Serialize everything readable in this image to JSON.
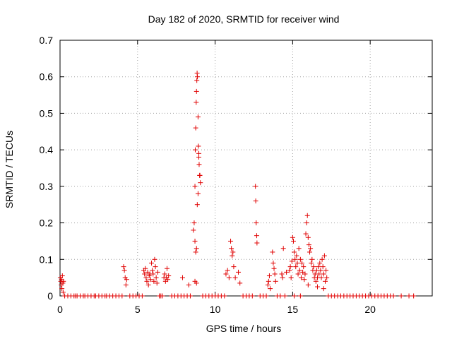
{
  "chart_data": {
    "type": "scatter",
    "title": "Day 182 of 2020, SRMTID for receiver wind",
    "xlabel": "GPS time / hours",
    "ylabel": "SRMTID / TECUs",
    "xlim": [
      0,
      24
    ],
    "ylim": [
      0,
      0.7
    ],
    "xticks": [
      0,
      5,
      10,
      15,
      20
    ],
    "xtick_labels": [
      "0",
      "5",
      "10",
      "15",
      "20"
    ],
    "yticks": [
      0,
      0.1,
      0.2,
      0.3,
      0.4,
      0.5,
      0.6,
      0.7
    ],
    "ytick_labels": [
      "0",
      "0.1",
      "0.2",
      "0.3",
      "0.4",
      "0.5",
      "0.6",
      "0.7"
    ],
    "grid": true,
    "marker": "plus",
    "color": "#e00000",
    "series": [
      {
        "name": "SRMTID",
        "points": [
          [
            0.02,
            0.05
          ],
          [
            0.05,
            0.04
          ],
          [
            0.08,
            0.03
          ],
          [
            0.1,
            0.045
          ],
          [
            0.12,
            0.02
          ],
          [
            0.15,
            0.055
          ],
          [
            0.18,
            0.035
          ],
          [
            0.2,
            0.01
          ],
          [
            0.22,
            0.04
          ],
          [
            0.3,
            0
          ],
          [
            0.5,
            0
          ],
          [
            0.7,
            0
          ],
          [
            0.9,
            0
          ],
          [
            1.0,
            0
          ],
          [
            1.1,
            0
          ],
          [
            1.3,
            0
          ],
          [
            1.5,
            0
          ],
          [
            1.6,
            0
          ],
          [
            1.8,
            0
          ],
          [
            2.0,
            0
          ],
          [
            2.2,
            0
          ],
          [
            2.3,
            0
          ],
          [
            2.5,
            0
          ],
          [
            2.7,
            0
          ],
          [
            2.9,
            0
          ],
          [
            3.0,
            0
          ],
          [
            3.2,
            0
          ],
          [
            3.4,
            0
          ],
          [
            3.6,
            0
          ],
          [
            3.8,
            0
          ],
          [
            4.0,
            0
          ],
          [
            4.1,
            0.08
          ],
          [
            4.15,
            0.07
          ],
          [
            4.2,
            0.05
          ],
          [
            4.25,
            0.03
          ],
          [
            4.3,
            0.045
          ],
          [
            4.5,
            0
          ],
          [
            4.7,
            0
          ],
          [
            4.9,
            0
          ],
          [
            5.1,
            0
          ],
          [
            5.3,
            0
          ],
          [
            5.4,
            0.07
          ],
          [
            5.45,
            0.06
          ],
          [
            5.5,
            0.075
          ],
          [
            5.55,
            0.05
          ],
          [
            5.6,
            0.04
          ],
          [
            5.65,
            0.065
          ],
          [
            5.7,
            0.03
          ],
          [
            5.75,
            0.055
          ],
          [
            5.8,
            0.06
          ],
          [
            5.85,
            0.045
          ],
          [
            5.9,
            0.09
          ],
          [
            5.95,
            0.07
          ],
          [
            6.0,
            0.06
          ],
          [
            6.05,
            0.04
          ],
          [
            6.1,
            0.1
          ],
          [
            6.15,
            0.08
          ],
          [
            6.2,
            0.05
          ],
          [
            6.25,
            0.035
          ],
          [
            6.3,
            0.065
          ],
          [
            6.4,
            0
          ],
          [
            6.5,
            0
          ],
          [
            6.6,
            0
          ],
          [
            6.7,
            0.05
          ],
          [
            6.75,
            0.06
          ],
          [
            6.8,
            0.04
          ],
          [
            6.85,
            0.05
          ],
          [
            6.9,
            0.075
          ],
          [
            6.95,
            0.045
          ],
          [
            7.0,
            0.055
          ],
          [
            7.2,
            0
          ],
          [
            7.4,
            0
          ],
          [
            7.6,
            0
          ],
          [
            7.8,
            0
          ],
          [
            7.9,
            0.05
          ],
          [
            8.0,
            0
          ],
          [
            8.2,
            0
          ],
          [
            8.3,
            0.03
          ],
          [
            8.4,
            0
          ],
          [
            8.6,
            0.18
          ],
          [
            8.65,
            0.2
          ],
          [
            8.7,
            0.3
          ],
          [
            8.72,
            0.4
          ],
          [
            8.75,
            0.46
          ],
          [
            8.78,
            0.53
          ],
          [
            8.8,
            0.56
          ],
          [
            8.82,
            0.59
          ],
          [
            8.84,
            0.61
          ],
          [
            8.86,
            0.6
          ],
          [
            8.9,
            0.49
          ],
          [
            8.92,
            0.41
          ],
          [
            8.95,
            0.38
          ],
          [
            8.97,
            0.36
          ],
          [
            9.0,
            0.33
          ],
          [
            9.02,
            0.33
          ],
          [
            9.05,
            0.31
          ],
          [
            8.7,
            0.15
          ],
          [
            8.75,
            0.12
          ],
          [
            8.8,
            0.13
          ],
          [
            8.85,
            0.25
          ],
          [
            8.9,
            0.28
          ],
          [
            8.95,
            0.39
          ],
          [
            8.7,
            0.04
          ],
          [
            8.8,
            0.035
          ],
          [
            9.2,
            0
          ],
          [
            9.4,
            0
          ],
          [
            9.6,
            0
          ],
          [
            9.8,
            0
          ],
          [
            10.0,
            0
          ],
          [
            10.2,
            0
          ],
          [
            10.4,
            0
          ],
          [
            10.6,
            0
          ],
          [
            10.7,
            0.06
          ],
          [
            10.8,
            0.07
          ],
          [
            10.9,
            0.05
          ],
          [
            11.0,
            0.15
          ],
          [
            11.05,
            0.13
          ],
          [
            11.1,
            0.11
          ],
          [
            11.15,
            0.12
          ],
          [
            11.2,
            0.08
          ],
          [
            11.3,
            0.05
          ],
          [
            11.5,
            0.065
          ],
          [
            11.6,
            0.035
          ],
          [
            11.8,
            0
          ],
          [
            12.0,
            0
          ],
          [
            12.2,
            0
          ],
          [
            12.4,
            0
          ],
          [
            12.6,
            0.3
          ],
          [
            12.62,
            0.26
          ],
          [
            12.65,
            0.2
          ],
          [
            12.68,
            0.165
          ],
          [
            12.7,
            0.145
          ],
          [
            12.9,
            0
          ],
          [
            13.1,
            0
          ],
          [
            13.3,
            0
          ],
          [
            13.4,
            0.03
          ],
          [
            13.45,
            0.04
          ],
          [
            13.5,
            0.055
          ],
          [
            13.55,
            0.02
          ],
          [
            13.7,
            0.12
          ],
          [
            13.75,
            0.09
          ],
          [
            13.8,
            0.075
          ],
          [
            13.85,
            0.06
          ],
          [
            13.9,
            0.04
          ],
          [
            14.0,
            0
          ],
          [
            14.2,
            0
          ],
          [
            14.3,
            0.06
          ],
          [
            14.35,
            0.05
          ],
          [
            14.4,
            0.13
          ],
          [
            14.5,
            0
          ],
          [
            14.6,
            0.065
          ],
          [
            14.8,
            0.07
          ],
          [
            14.85,
            0.08
          ],
          [
            14.9,
            0.05
          ],
          [
            14.95,
            0.095
          ],
          [
            15.0,
            0.16
          ],
          [
            15.05,
            0.15
          ],
          [
            15.1,
            0.12
          ],
          [
            15.15,
            0.1
          ],
          [
            15.2,
            0.08
          ],
          [
            15.25,
            0.11
          ],
          [
            15.3,
            0.09
          ],
          [
            15.35,
            0.06
          ],
          [
            15.4,
            0.13
          ],
          [
            15.45,
            0.07
          ],
          [
            15.5,
            0.1
          ],
          [
            15.55,
            0.05
          ],
          [
            15.6,
            0.09
          ],
          [
            15.65,
            0.065
          ],
          [
            15.7,
            0.08
          ],
          [
            15.75,
            0.045
          ],
          [
            15.8,
            0.06
          ],
          [
            15.85,
            0.17
          ],
          [
            15.9,
            0.2
          ],
          [
            15.95,
            0.22
          ],
          [
            16.0,
            0.16
          ],
          [
            16.05,
            0.14
          ],
          [
            16.1,
            0.12
          ],
          [
            16.15,
            0.13
          ],
          [
            16.2,
            0.09
          ],
          [
            16.25,
            0.1
          ],
          [
            16.3,
            0.07
          ],
          [
            16.35,
            0.08
          ],
          [
            16.4,
            0.05
          ],
          [
            16.45,
            0.06
          ],
          [
            16.5,
            0.04
          ],
          [
            16.55,
            0.07
          ],
          [
            16.6,
            0.05
          ],
          [
            16.65,
            0.08
          ],
          [
            16.7,
            0.06
          ],
          [
            16.75,
            0.09
          ],
          [
            16.8,
            0.07
          ],
          [
            16.85,
            0.05
          ],
          [
            16.9,
            0.1
          ],
          [
            16.95,
            0.08
          ],
          [
            17.0,
            0.06
          ],
          [
            17.05,
            0.11
          ],
          [
            17.1,
            0.04
          ],
          [
            17.15,
            0.07
          ],
          [
            17.2,
            0.05
          ],
          [
            15.1,
            0
          ],
          [
            15.5,
            0
          ],
          [
            16.0,
            0.03
          ],
          [
            16.6,
            0.025
          ],
          [
            17.0,
            0.02
          ],
          [
            17.3,
            0
          ],
          [
            17.5,
            0
          ],
          [
            17.7,
            0
          ],
          [
            17.9,
            0
          ],
          [
            18.1,
            0
          ],
          [
            18.3,
            0
          ],
          [
            18.5,
            0
          ],
          [
            18.7,
            0
          ],
          [
            18.9,
            0
          ],
          [
            19.1,
            0
          ],
          [
            19.3,
            0
          ],
          [
            19.5,
            0
          ],
          [
            19.7,
            0
          ],
          [
            19.9,
            0
          ],
          [
            20.1,
            0
          ],
          [
            20.3,
            0
          ],
          [
            20.5,
            0
          ],
          [
            20.7,
            0
          ],
          [
            20.9,
            0
          ],
          [
            21.1,
            0
          ],
          [
            21.3,
            0
          ],
          [
            21.5,
            0
          ],
          [
            22.0,
            0
          ],
          [
            22.5,
            0
          ],
          [
            22.8,
            0
          ]
        ]
      }
    ]
  }
}
